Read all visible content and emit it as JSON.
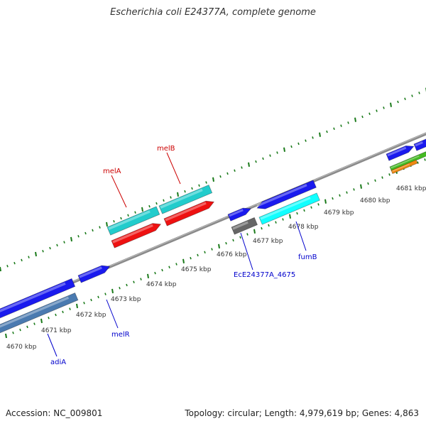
{
  "header": {
    "title": "Escherichia coli E24377A, complete genome"
  },
  "footer": {
    "accession": "Accession: NC_009801",
    "genome_info": "Topology: circular; Length: 4,979,619 bp; Genes: 4,863"
  },
  "colors": {
    "backbone": "#7f7f7f",
    "tick_outer": "#1a7a1a",
    "tick_inner": "#1a7a1a",
    "gene_blue": "#1a1aee",
    "gene_steel": "#4a7ab0",
    "gene_teal": "#22cccc",
    "gene_red": "#ee1111",
    "gene_gray": "#666666",
    "gene_cyan": "#11ffff",
    "gene_green": "#44bb22",
    "gene_orange": "#ee8811",
    "label_red": "#cc0000",
    "label_blue": "#0000cc"
  },
  "scale": {
    "unit": "kbp",
    "labels": [
      "4670 kbp",
      "4671 kbp",
      "4672 kbp",
      "4673 kbp",
      "4674 kbp",
      "4675 kbp",
      "4676 kbp",
      "4677 kbp",
      "4678 kbp",
      "4679 kbp",
      "4680 kbp",
      "4681 kbp"
    ]
  },
  "gene_labels": [
    {
      "name": "adiA",
      "color": "blue"
    },
    {
      "name": "melR",
      "color": "blue"
    },
    {
      "name": "melA",
      "color": "red"
    },
    {
      "name": "melB",
      "color": "red"
    },
    {
      "name": "EcE24377A_4675",
      "color": "blue"
    },
    {
      "name": "fumB",
      "color": "blue"
    }
  ]
}
